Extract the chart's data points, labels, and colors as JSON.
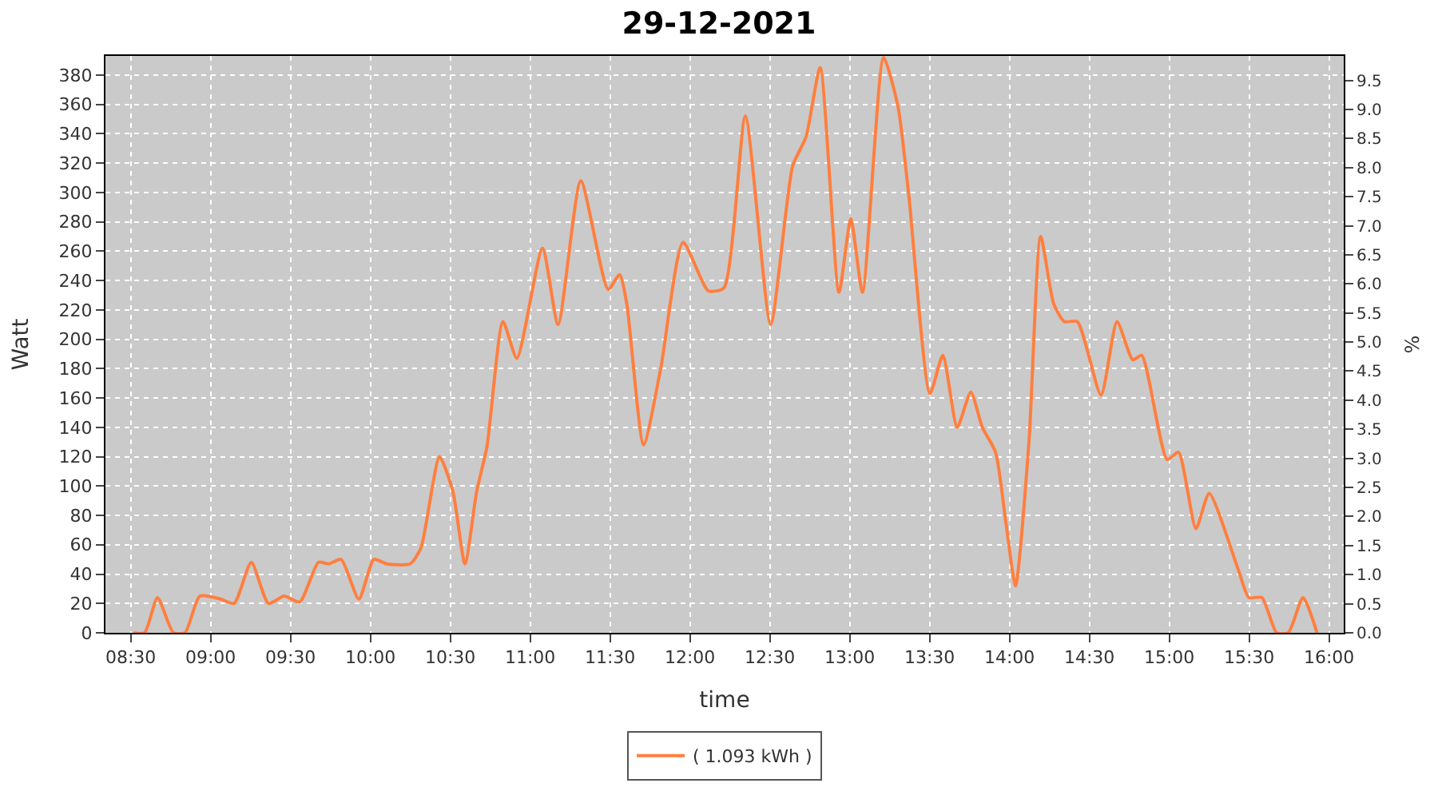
{
  "chart_data": {
    "type": "line",
    "title": "29-12-2021",
    "xlabel": "time",
    "ylabel": "Watt",
    "y2label": "%",
    "x": [
      8.517,
      8.587,
      8.668,
      8.767,
      8.84,
      8.933,
      9.063,
      9.147,
      9.255,
      9.362,
      9.46,
      9.558,
      9.675,
      9.74,
      9.817,
      9.928,
      10.022,
      10.103,
      10.25,
      10.317,
      10.433,
      10.517,
      10.592,
      10.665,
      10.73,
      10.83,
      10.917,
      11.077,
      11.175,
      11.317,
      11.488,
      11.56,
      11.605,
      11.71,
      11.817,
      11.957,
      12.115,
      12.213,
      12.347,
      12.505,
      12.643,
      12.727,
      12.815,
      12.933,
      13.007,
      13.08,
      13.212,
      13.303,
      13.37,
      13.502,
      13.583,
      13.673,
      13.758,
      13.83,
      13.913,
      13.98,
      14.038,
      14.122,
      14.195,
      14.277,
      14.343,
      14.425,
      14.573,
      14.673,
      14.772,
      14.828,
      14.987,
      15.058,
      15.167,
      15.25,
      15.432,
      15.498,
      15.58,
      15.672,
      15.745,
      15.837,
      15.925
    ],
    "series": [
      {
        "name": "( 1.093 kWh )",
        "color": "#ff7f3f",
        "values": [
          0,
          0,
          24,
          0,
          0,
          25,
          23,
          20,
          48,
          20,
          25,
          21,
          48,
          47,
          50,
          23,
          50,
          47,
          47,
          58,
          120,
          96,
          47,
          96,
          127,
          212,
          187,
          262,
          210,
          308,
          234,
          244,
          224,
          128,
          180,
          266,
          233,
          235,
          352,
          210,
          318,
          338,
          385,
          232,
          282,
          232,
          392,
          358,
          298,
          163,
          189,
          140,
          164,
          140,
          123,
          73,
          32,
          130,
          270,
          224,
          212,
          212,
          162,
          212,
          186,
          189,
          118,
          123,
          71,
          95,
          43,
          24,
          24,
          0,
          0,
          24,
          0
        ]
      }
    ],
    "xlim": [
      8.342,
      16.092
    ],
    "xticks": [
      {
        "value": 8.5,
        "label": "08:30"
      },
      {
        "value": 9,
        "label": "09:00"
      },
      {
        "value": 9.5,
        "label": "09:30"
      },
      {
        "value": 10,
        "label": "10:00"
      },
      {
        "value": 10.5,
        "label": "10:30"
      },
      {
        "value": 11,
        "label": "11:00"
      },
      {
        "value": 11.5,
        "label": "11:30"
      },
      {
        "value": 12,
        "label": "12:00"
      },
      {
        "value": 12.5,
        "label": "12:30"
      },
      {
        "value": 13,
        "label": "13:00"
      },
      {
        "value": 13.5,
        "label": "13:30"
      },
      {
        "value": 14,
        "label": "14:00"
      },
      {
        "value": 14.5,
        "label": "14:30"
      },
      {
        "value": 15,
        "label": "15:00"
      },
      {
        "value": 15.5,
        "label": "15:30"
      },
      {
        "value": 16,
        "label": "16:00"
      }
    ],
    "ylim": [
      0,
      393
    ],
    "yticks": [
      0,
      20,
      40,
      60,
      80,
      100,
      120,
      140,
      160,
      180,
      200,
      220,
      240,
      260,
      280,
      300,
      320,
      340,
      360,
      380
    ],
    "y2lim": [
      0,
      9.92
    ],
    "y2ticks": [
      {
        "value": 0,
        "label": "0.0"
      },
      0.5,
      {
        "value": 1,
        "label": "1.0"
      },
      1.5,
      {
        "value": 2,
        "label": "2.0"
      },
      2.5,
      {
        "value": 3,
        "label": "3.0"
      },
      3.5,
      {
        "value": 4,
        "label": "4.0"
      },
      4.5,
      {
        "value": 5,
        "label": "5.0"
      },
      5.5,
      {
        "value": 6,
        "label": "6.0"
      },
      6.5,
      {
        "value": 7,
        "label": "7.0"
      },
      7.5,
      {
        "value": 8,
        "label": "8.0"
      },
      8.5,
      {
        "value": 9,
        "label": "9.0"
      },
      9.5
    ],
    "grid": true,
    "legend": "bottom",
    "marker": "none",
    "line_style": "solid"
  }
}
